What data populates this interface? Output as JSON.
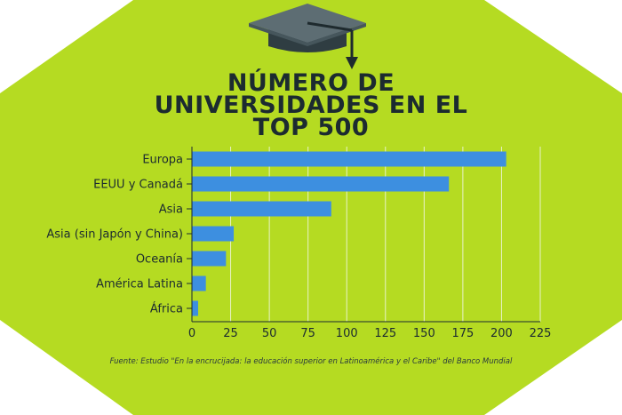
{
  "colors": {
    "background": "#b5db22",
    "bar": "#3d8fe0",
    "text": "#1c2b30",
    "grid": "#e8f2c8"
  },
  "icon": "graduation-cap-icon",
  "title_lines": [
    "NÚMERO DE",
    "UNIVERSIDADES EN EL",
    "TOP 500"
  ],
  "source": "Fuente: Estudio \"En la encrucijada: la educación superior en Latinoamérica y el Caribe\" del Banco Mundial",
  "chart_data": {
    "type": "bar",
    "orientation": "horizontal",
    "title": "NÚMERO DE UNIVERSIDADES EN EL TOP 500",
    "categories": [
      "Europa",
      "EEUU y Canadá",
      "Asia",
      "Asia (sin Japón y China)",
      "Oceanía",
      "América Latina",
      "África"
    ],
    "values": [
      203,
      166,
      90,
      27,
      22,
      9,
      4
    ],
    "xlim": [
      0,
      225
    ],
    "xticks": [
      0,
      25,
      50,
      75,
      100,
      125,
      150,
      175,
      200,
      225
    ],
    "xlabel": "",
    "ylabel": "",
    "grid": true,
    "legend": "none"
  }
}
